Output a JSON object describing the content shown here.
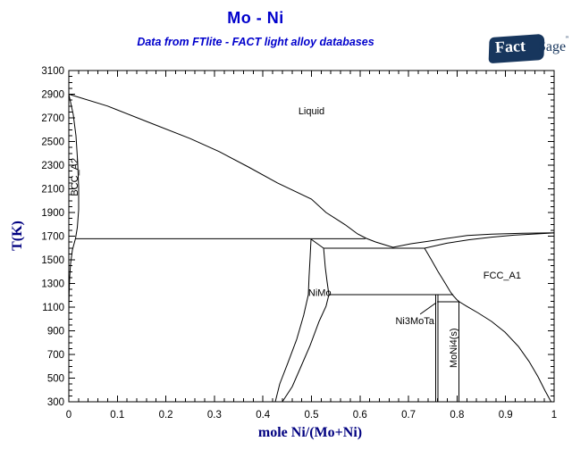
{
  "header": {
    "title": "Mo - Ni",
    "subtitle": "Data from FTlite - FACT light alloy databases"
  },
  "logo": {
    "fact": "Fact",
    "sage": "Sage",
    "reg": "”"
  },
  "chart_data": {
    "type": "line",
    "title": "Mo - Ni",
    "xlabel": "mole Ni/(Mo+Ni)",
    "ylabel": "T(K)",
    "xlim": [
      0,
      1
    ],
    "ylim": [
      300,
      3100
    ],
    "x_major_step": 0.1,
    "x_minor_step": 0.02,
    "y_major_step": 200,
    "y_minor_step": 50,
    "grid": false,
    "x_tick_labels": [
      "0",
      "0.1",
      "0.2",
      "0.3",
      "0.4",
      "0.5",
      "0.6",
      "0.7",
      "0.8",
      "0.9",
      "1"
    ],
    "y_tick_labels": [
      "300",
      "500",
      "700",
      "900",
      "1100",
      "1300",
      "1500",
      "1700",
      "1900",
      "2100",
      "2300",
      "2500",
      "2700",
      "2900",
      "3100"
    ],
    "series": [
      {
        "name": "liquidus",
        "points": [
          [
            0,
            2900
          ],
          [
            0.08,
            2800
          ],
          [
            0.16,
            2670
          ],
          [
            0.25,
            2525
          ],
          [
            0.31,
            2415
          ],
          [
            0.37,
            2285
          ],
          [
            0.43,
            2150
          ],
          [
            0.5,
            2013
          ],
          [
            0.53,
            1900
          ],
          [
            0.57,
            1795
          ],
          [
            0.595,
            1719
          ],
          [
            0.613,
            1681
          ],
          [
            0.632,
            1651
          ],
          [
            0.656,
            1621
          ],
          [
            0.668,
            1606
          ],
          [
            0.705,
            1636
          ],
          [
            0.742,
            1658
          ],
          [
            0.779,
            1681
          ],
          [
            0.821,
            1706
          ],
          [
            0.871,
            1717
          ],
          [
            0.935,
            1724
          ],
          [
            1,
            1728
          ]
        ]
      },
      {
        "name": "bcc-solvus",
        "points": [
          [
            0,
            2900
          ],
          [
            0.009,
            2731
          ],
          [
            0.0147,
            2549
          ],
          [
            0.018,
            2338
          ],
          [
            0.0203,
            2112
          ],
          [
            0.0203,
            1923
          ],
          [
            0.0175,
            1772
          ],
          [
            0.0138,
            1681
          ],
          [
            0.0074,
            1583
          ],
          [
            0.0037,
            1470
          ],
          [
            0.0018,
            1357
          ],
          [
            0.0006,
            1206
          ],
          [
            0,
            1055
          ]
        ]
      },
      {
        "name": "peritectic-line",
        "points": [
          [
            0.013,
            1678
          ],
          [
            0.611,
            1678
          ]
        ]
      },
      {
        "name": "nimo-left-boundary",
        "points": [
          [
            0.499,
            1674
          ],
          [
            0.497,
            1508
          ],
          [
            0.495,
            1357
          ],
          [
            0.4935,
            1206
          ],
          [
            0.484,
            1032
          ],
          [
            0.4696,
            828
          ],
          [
            0.451,
            625
          ],
          [
            0.4346,
            451
          ],
          [
            0.4254,
            300
          ]
        ]
      },
      {
        "name": "nimo-right-boundary",
        "points": [
          [
            0.499,
            1674
          ],
          [
            0.525,
            1598
          ],
          [
            0.5285,
            1432
          ],
          [
            0.532,
            1319
          ],
          [
            0.536,
            1206
          ],
          [
            0.53,
            1108
          ],
          [
            0.5156,
            979
          ],
          [
            0.497,
            775
          ],
          [
            0.4788,
            602
          ],
          [
            0.4604,
            428
          ],
          [
            0.44,
            300
          ]
        ]
      },
      {
        "name": "eutectic-line",
        "points": [
          [
            0.525,
            1598
          ],
          [
            0.733,
            1598
          ]
        ]
      },
      {
        "name": "fcc-solidus",
        "points": [
          [
            0.733,
            1598
          ],
          [
            0.779,
            1640
          ],
          [
            0.825,
            1670
          ],
          [
            0.871,
            1692
          ],
          [
            0.917,
            1708
          ],
          [
            0.963,
            1719
          ],
          [
            1,
            1727
          ]
        ]
      },
      {
        "name": "fcc-solvus",
        "points": [
          [
            0.733,
            1598
          ],
          [
            0.7458,
            1508
          ],
          [
            0.7606,
            1402
          ],
          [
            0.7753,
            1304
          ],
          [
            0.7864,
            1228
          ],
          [
            0.7919,
            1198
          ],
          [
            0.7993,
            1164
          ],
          [
            0.8048,
            1145
          ],
          [
            0.8195,
            1108
          ],
          [
            0.8435,
            1051
          ],
          [
            0.871,
            979
          ],
          [
            0.8987,
            889
          ],
          [
            0.9263,
            768
          ],
          [
            0.9484,
            640
          ],
          [
            0.9668,
            511
          ],
          [
            0.9816,
            391
          ],
          [
            0.9926,
            308
          ],
          [
            0.994,
            300
          ]
        ]
      },
      {
        "name": "peritectoid-ni3mo-line",
        "points": [
          [
            0.536,
            1206
          ],
          [
            0.792,
            1206
          ]
        ]
      },
      {
        "name": "peritectoid-moni4-line",
        "points": [
          [
            0.759,
            1145
          ],
          [
            0.805,
            1145
          ]
        ]
      },
      {
        "name": "ni3mota-left",
        "points": [
          [
            0.756,
            1206
          ],
          [
            0.756,
            300
          ]
        ]
      },
      {
        "name": "ni3mota-right",
        "points": [
          [
            0.7606,
            1206
          ],
          [
            0.7606,
            300
          ]
        ]
      },
      {
        "name": "moni4-line",
        "points": [
          [
            0.8038,
            1145
          ],
          [
            0.8038,
            300
          ]
        ]
      },
      {
        "name": "ni3mota-leader",
        "points": [
          [
            0.724,
            1040
          ],
          [
            0.757,
            1138
          ]
        ]
      }
    ],
    "phase_labels": [
      {
        "id": "liquid",
        "text": "Liquid",
        "x": 0.5,
        "T": 2760,
        "rotate": 0
      },
      {
        "id": "bcc-a2",
        "text": "BCC_A2",
        "x": 0.011,
        "T": 2200,
        "rotate": -90
      },
      {
        "id": "fcc-a1",
        "text": "FCC_A1",
        "x": 0.893,
        "T": 1372,
        "rotate": 0
      },
      {
        "id": "nimo",
        "text": "NiMo",
        "x": 0.517,
        "T": 1225,
        "rotate": 0
      },
      {
        "id": "ni3mota",
        "text": "Ni3MoTa",
        "x": 0.713,
        "T": 985,
        "rotate": 0
      },
      {
        "id": "moni4",
        "text": "MoNi4(s)",
        "x": 0.792,
        "T": 755,
        "rotate": -90
      }
    ]
  }
}
